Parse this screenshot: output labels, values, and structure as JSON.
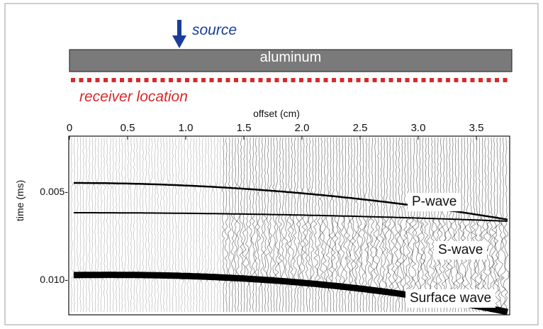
{
  "source_label": "source",
  "plate_label": "aluminum",
  "receiver_label": "receiver location",
  "x_axis": {
    "label": "offset (cm)",
    "ticks": [
      "0",
      "0.5",
      "1.0",
      "1.5",
      "2.0",
      "2.5",
      "3.0",
      "3.5"
    ],
    "range": [
      0,
      3.85
    ]
  },
  "y_axis": {
    "label": "time (ms)",
    "ticks": [
      "0.005-",
      "0.010-"
    ],
    "tick_values": [
      0.005,
      0.01
    ]
  },
  "wave_labels": {
    "p_wave": "P-wave",
    "s_wave": "S-wave",
    "surface_wave": "Surface wave"
  },
  "colors": {
    "source_arrow": "#1a3d9c",
    "receiver": "#d42a2a",
    "plate_fill": "#7a7a7a",
    "traces": "#000000"
  }
}
